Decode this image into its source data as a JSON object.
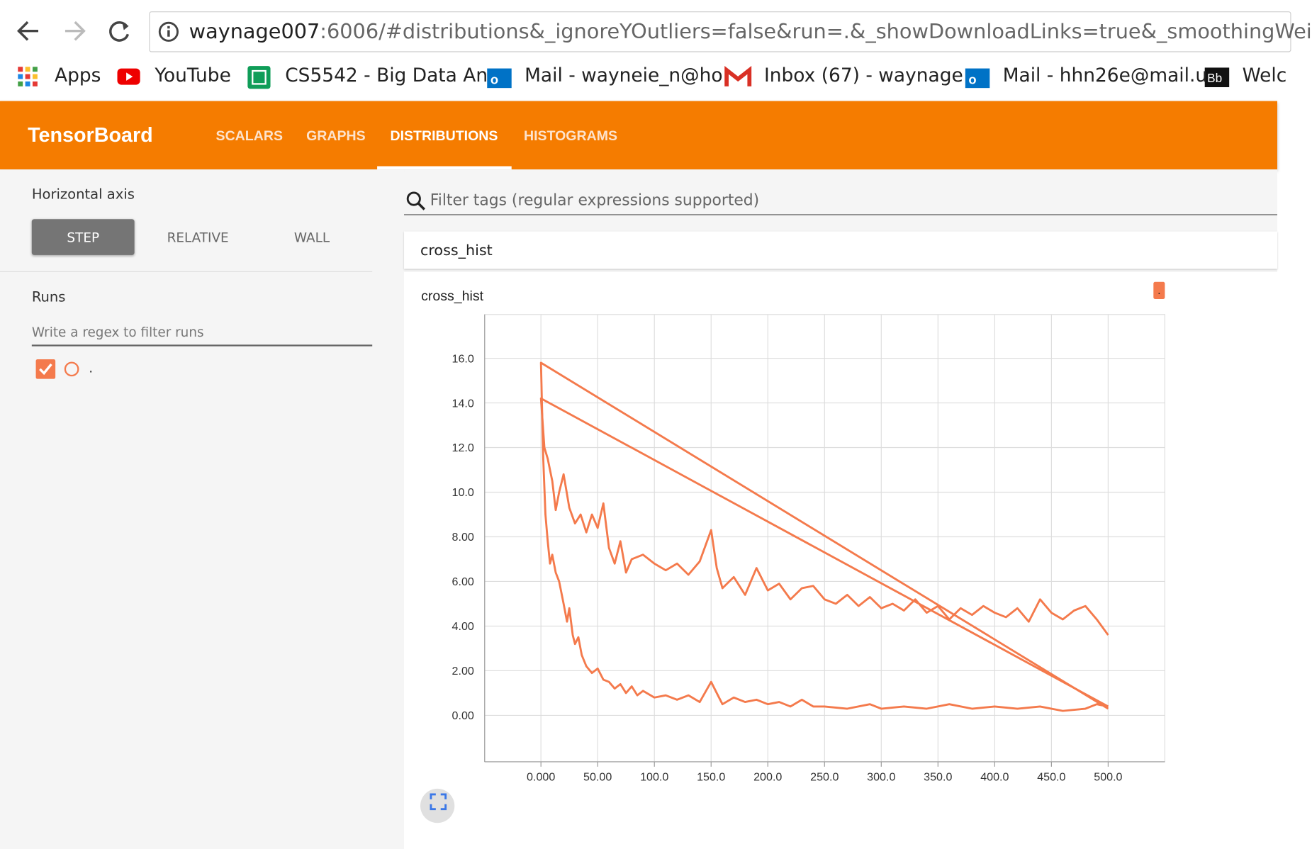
{
  "browser": {
    "url_host": "waynage007",
    "url_rest": ":6006/#distributions&_ignoreYOutliers=false&run=.&_showDownloadLinks=true&_smoothingWei"
  },
  "bookmarks": [
    "Apps",
    "YouTube",
    "CS5542 - Big Data An",
    "Mail - wayneie_n@ho",
    "Inbox (67) - waynage",
    "Mail - hhn26e@mail.u",
    "Welc"
  ],
  "header": {
    "title": "TensorBoard",
    "tabs": [
      "SCALARS",
      "GRAPHS",
      "DISTRIBUTIONS",
      "HISTOGRAMS"
    ]
  },
  "sidebar": {
    "axis_label": "Horizontal axis",
    "axis_options": [
      "STEP",
      "RELATIVE",
      "WALL"
    ],
    "runs_label": "Runs",
    "runs_filter": "Write a regex to filter runs",
    "runs": [
      "."
    ]
  },
  "main": {
    "filter": "Filter tags (regular expressions supported)",
    "card_title": "cross_hist"
  },
  "chart_data": {
    "type": "line",
    "title": "cross_hist",
    "xlim": [
      -49.6,
      550
    ],
    "ylim": [
      -2.08,
      17.96
    ],
    "xticks": [
      {
        "value": 0,
        "label": "0.000"
      },
      {
        "value": 50,
        "label": "50.00"
      },
      {
        "value": 100,
        "label": "100.0"
      },
      {
        "value": 150,
        "label": "150.0"
      },
      {
        "value": 200,
        "label": "200.0"
      },
      {
        "value": 250,
        "label": "250.0"
      },
      {
        "value": 300,
        "label": "300.0"
      },
      {
        "value": 350,
        "label": "350.0"
      },
      {
        "value": 400,
        "label": "400.0"
      },
      {
        "value": 450,
        "label": "450.0"
      },
      {
        "value": 500,
        "label": "500.0"
      }
    ],
    "yticks": [
      {
        "value": 0,
        "label": "0.00"
      },
      {
        "value": 2,
        "label": "2.00"
      },
      {
        "value": 4,
        "label": "4.00"
      },
      {
        "value": 6,
        "label": "6.00"
      },
      {
        "value": 8,
        "label": "8.00"
      },
      {
        "value": 10,
        "label": "10.0"
      },
      {
        "value": 12,
        "label": "12.0"
      },
      {
        "value": 14,
        "label": "14.0"
      },
      {
        "value": 16,
        "label": "16.0"
      }
    ],
    "grid": true,
    "series": [
      {
        "name": ".",
        "color": "#f47a4c",
        "x": [
          500,
          0,
          2,
          4,
          6,
          8,
          10,
          13,
          16,
          20,
          23,
          25,
          28,
          30,
          33,
          36,
          40,
          45,
          50,
          55,
          60,
          65,
          70,
          75,
          80,
          85,
          90,
          100,
          110,
          120,
          130,
          140,
          150,
          155,
          160,
          170,
          180,
          190,
          200,
          210,
          220,
          230,
          240,
          250,
          270,
          290,
          300,
          320,
          340,
          360,
          380,
          400,
          420,
          440,
          460,
          480,
          490,
          500,
          null,
          500,
          0,
          3,
          6,
          10,
          13,
          16,
          20,
          25,
          30,
          35,
          40,
          45,
          50,
          55,
          60,
          65,
          70,
          75,
          80,
          90,
          100,
          110,
          120,
          130,
          140,
          150,
          155,
          160,
          170,
          180,
          190,
          200,
          210,
          220,
          230,
          240,
          250,
          260,
          270,
          280,
          290,
          300,
          310,
          320,
          330,
          340,
          350,
          360,
          370,
          380,
          390,
          400,
          410,
          420,
          430,
          440,
          450,
          460,
          470,
          480,
          490,
          500
        ],
        "values": [
          0.3,
          15.8,
          11.5,
          9,
          7.8,
          6.8,
          7.2,
          6.4,
          6,
          5,
          4.2,
          4.8,
          3.6,
          3.2,
          3.5,
          2.7,
          2.2,
          1.9,
          2.1,
          1.6,
          1.5,
          1.2,
          1.4,
          1.0,
          1.3,
          0.9,
          1.1,
          0.8,
          0.9,
          0.7,
          0.9,
          0.6,
          1.5,
          1.0,
          0.5,
          0.8,
          0.6,
          0.7,
          0.5,
          0.6,
          0.4,
          0.7,
          0.4,
          0.4,
          0.3,
          0.5,
          0.3,
          0.4,
          0.3,
          0.5,
          0.3,
          0.4,
          0.3,
          0.4,
          0.2,
          0.3,
          0.5,
          0.4,
          null,
          0.4,
          14.2,
          12,
          11.5,
          10.5,
          9.2,
          10,
          10.8,
          9.3,
          8.6,
          9,
          8.2,
          9,
          8.4,
          9.5,
          7.5,
          6.8,
          7.8,
          6.4,
          7.0,
          7.2,
          6.8,
          6.5,
          6.8,
          6.3,
          6.9,
          8.3,
          6.6,
          5.7,
          6.2,
          5.4,
          6.6,
          5.6,
          5.9,
          5.2,
          5.7,
          5.8,
          5.2,
          5.0,
          5.4,
          4.9,
          5.3,
          4.8,
          5.0,
          4.7,
          5.2,
          4.6,
          4.9,
          4.3,
          4.8,
          4.5,
          4.9,
          4.6,
          4.4,
          4.8,
          4.2,
          5.2,
          4.6,
          4.3,
          4.7,
          4.9,
          4.3,
          3.6
        ]
      }
    ]
  }
}
